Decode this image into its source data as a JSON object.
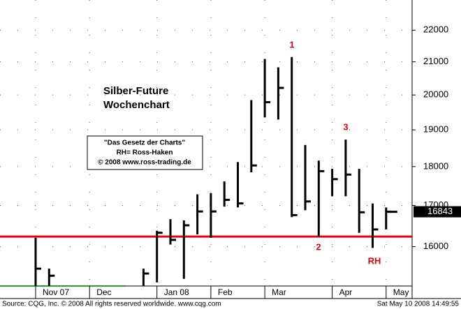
{
  "chart_data": {
    "type": "ohlc",
    "title": "Silber-Future",
    "subtitle": "Wochenchart",
    "categories": [
      "Nov 07",
      null,
      null,
      null,
      "Dec",
      null,
      null,
      null,
      null,
      "Jan 08",
      null,
      null,
      null,
      "Feb",
      null,
      null,
      null,
      "Mar",
      null,
      null,
      null,
      null,
      "Apr",
      null,
      null,
      null,
      "May"
    ],
    "high": [
      16210,
      15490,
      null,
      null,
      null,
      null,
      null,
      null,
      15490,
      16380,
      16660,
      16630,
      17280,
      17310,
      17610,
      18120,
      19850,
      21090,
      20830,
      21150,
      18580,
      18160,
      17940,
      18730,
      17940,
      17050,
      16950
    ],
    "low": [
      15100,
      15100,
      null,
      null,
      null,
      null,
      null,
      null,
      15100,
      15180,
      16050,
      15260,
      16290,
      16210,
      16970,
      16950,
      17850,
      19350,
      19290,
      16710,
      16880,
      16240,
      17230,
      17230,
      16330,
      15970,
      16410
    ],
    "close": [
      15490,
      15330,
      null,
      null,
      null,
      null,
      null,
      null,
      15380,
      16330,
      16160,
      16510,
      16850,
      16850,
      17140,
      17050,
      18030,
      19790,
      20210,
      16760,
      17100,
      17880,
      17670,
      17790,
      16830,
      16410,
      16843
    ],
    "color": "#000000",
    "ylim": [
      15100,
      23000
    ],
    "yticks": [
      16000,
      17000,
      18000,
      19000,
      20000,
      21000,
      22000
    ],
    "log_scale": true,
    "grid": true,
    "support_level": 16240,
    "support_color": "#e8000b",
    "annotation_color": "#e8000b",
    "annotations": [
      "1",
      "2",
      "3",
      "RH"
    ],
    "info_box": [
      "\"Das Gesetz der Charts\"",
      "RH= Ross-Haken",
      "© 2008 www.ross-trading.de"
    ],
    "source": "Source: CQG, Inc. © 2008 All rights reserved worldwide. www.cqg.com",
    "timestamp": "Sat May 10 2008 14:49:55"
  }
}
